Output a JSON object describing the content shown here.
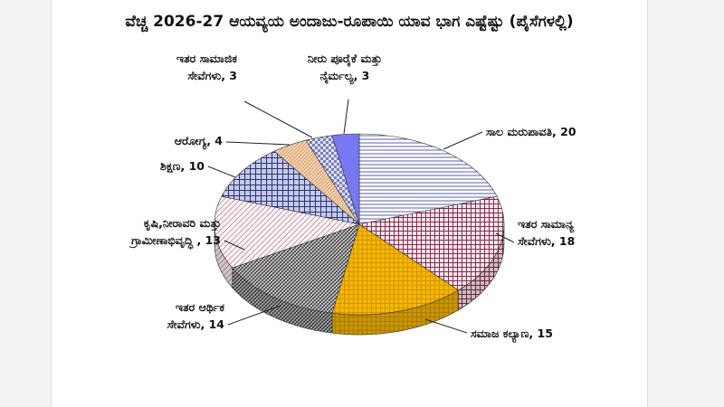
{
  "title": "ವೆಚ್ಚ 2026-27 ಆಯವ್ಯಯ ಅಂದಾಜು-ರೂಪಾಯಿ ಯಾವ ಭಾಗ ಎಷ್ಟೆಷ್ಟು (ಪೈಸೆಗಳಲ್ಲಿ)",
  "chart_data": {
    "type": "pie",
    "title": "ವೆಚ್ಚ 2026-27 ಆಯವ್ಯಯ ಅಂದಾಜು-ರೂಪಾಯಿ ಯಾವ ಭಾಗ ಎಷ್ಟೆಷ್ಟು (ಪೈಸೆಗಳಲ್ಲಿ)",
    "slices": [
      {
        "name": "ಸಾಲ ಮರುಪಾವತಿ",
        "value": 20,
        "label_lines": [
          "ಸಾಲ ಮರುಪಾವತಿ, 20"
        ],
        "color": "#3a3f8f",
        "pattern": "hlines"
      },
      {
        "name": "ಇತರ ಸಾಮಾನ್ಯ ಸೇವೆಗಳು",
        "value": 18,
        "label_lines": [
          "ಇತರ ಸಾಮಾನ್ಯ",
          "ಸೇವೆಗಳು, 18"
        ],
        "color": "#8a2a4a",
        "pattern": "grid"
      },
      {
        "name": "ಸಮಾಜ ಕಲ್ಯಾಣ",
        "value": 15,
        "label_lines": [
          "ಸಮಾಜ ಕಲ್ಯಾಣ, 15"
        ],
        "color": "#f2b705",
        "pattern": "yellowgrid"
      },
      {
        "name": "ಇತರ ಆರ್ಥಿಕ ಸೇವೆಗಳು",
        "value": 14,
        "label_lines": [
          "ಇತರ ಆರ್ಥಿಕ",
          "ಸೇವೆಗಳು, 14"
        ],
        "color": "#3b3b3b",
        "pattern": "dense"
      },
      {
        "name": "ಕೃಷಿ,ನೀರಾವರಿ ಮತ್ತು ಗ್ರಾಮೀಣಾಭಿವೃದ್ಧಿ",
        "value": 13,
        "label_lines": [
          "ಕೃಷಿ,ನೀರಾವರಿ ಮತ್ತು",
          "ಗ್ರಾಮೀಣಾಭಿವೃದ್ಧಿ , 13"
        ],
        "color": "#8a2a4a",
        "pattern": "diag"
      },
      {
        "name": "ಶಿಕ್ಷಣ",
        "value": 10,
        "label_lines": [
          "ಶಿಕ್ಷಣ, 10"
        ],
        "color": "#2a3580",
        "pattern": "bluegrid"
      },
      {
        "name": "ಆರೋಗ್ಯ",
        "value": 4,
        "label_lines": [
          "ಆರೋಗ್ಯ, 4"
        ],
        "color": "#b07840",
        "pattern": "orange"
      },
      {
        "name": "ಇತರ ಸಾಮಾಜಿಕ ಸೇವೆಗಳು",
        "value": 3,
        "label_lines": [
          "ಇತರ ಸಾಮಾಜಿಕ",
          "ಸೇವೆಗಳು, 3"
        ],
        "color": "#2a3580",
        "pattern": "checker"
      },
      {
        "name": "ನೀರು ಪೂರೈಕೆ ಮತ್ತು ನೈರ್ಮಲ್ಯ",
        "value": 3,
        "label_lines": [
          "ನೀರು ಪೂರೈಕೆ ಮತ್ತು",
          "ನೈರ್ಮಲ್ಯ, 3"
        ],
        "color": "#6f6ff0",
        "pattern": "solid"
      }
    ]
  }
}
